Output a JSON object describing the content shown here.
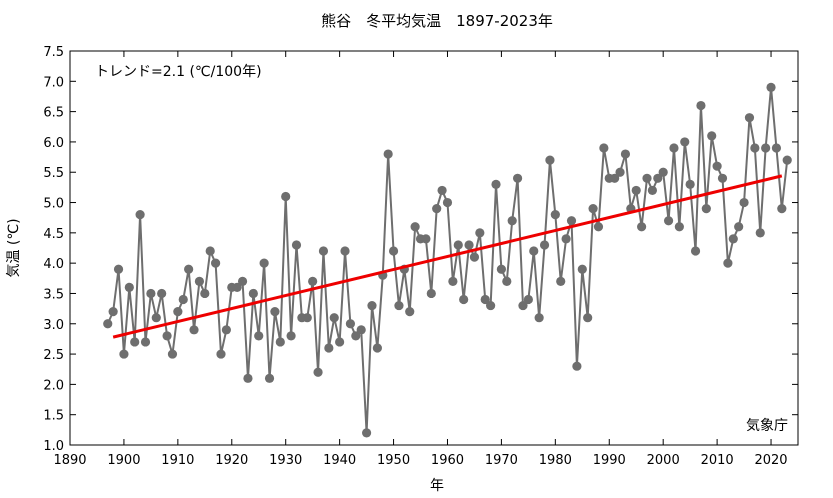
{
  "chart_data": {
    "type": "line",
    "title": "熊谷　冬平均気温　1897-2023年",
    "xlabel": "年",
    "ylabel": "気温 (℃)",
    "xlim": [
      1890,
      2025
    ],
    "ylim": [
      1.0,
      7.5
    ],
    "xticks": [
      1890,
      1900,
      1910,
      1920,
      1930,
      1940,
      1950,
      1960,
      1970,
      1980,
      1990,
      2000,
      2010,
      2020
    ],
    "yticks": [
      "1.0",
      "1.5",
      "2.0",
      "2.5",
      "3.0",
      "3.5",
      "4.0",
      "4.5",
      "5.0",
      "5.5",
      "6.0",
      "6.5",
      "7.0",
      "7.5"
    ],
    "grid": false,
    "series": [
      {
        "kind": "observed",
        "color": "#6e6e6e",
        "x": [
          1897,
          1898,
          1899,
          1900,
          1901,
          1902,
          1903,
          1904,
          1905,
          1906,
          1907,
          1908,
          1909,
          1910,
          1911,
          1912,
          1913,
          1914,
          1915,
          1916,
          1917,
          1918,
          1919,
          1920,
          1921,
          1922,
          1923,
          1924,
          1925,
          1926,
          1927,
          1928,
          1929,
          1930,
          1931,
          1932,
          1933,
          1934,
          1935,
          1936,
          1937,
          1938,
          1939,
          1940,
          1941,
          1942,
          1943,
          1944,
          1945,
          1946,
          1947,
          1948,
          1949,
          1950,
          1951,
          1952,
          1953,
          1954,
          1955,
          1956,
          1957,
          1958,
          1959,
          1960,
          1961,
          1962,
          1963,
          1964,
          1965,
          1966,
          1967,
          1968,
          1969,
          1970,
          1971,
          1972,
          1973,
          1974,
          1975,
          1976,
          1977,
          1978,
          1979,
          1980,
          1981,
          1982,
          1983,
          1984,
          1985,
          1986,
          1987,
          1988,
          1989,
          1990,
          1991,
          1992,
          1993,
          1994,
          1995,
          1996,
          1997,
          1998,
          1999,
          2000,
          2001,
          2002,
          2003,
          2004,
          2005,
          2006,
          2007,
          2008,
          2009,
          2010,
          2011,
          2012,
          2013,
          2014,
          2015,
          2016,
          2017,
          2018,
          2019,
          2020,
          2021,
          2022,
          2023
        ],
        "values": [
          3.0,
          3.2,
          3.9,
          2.5,
          3.6,
          2.7,
          4.8,
          2.7,
          3.5,
          3.1,
          3.5,
          2.8,
          2.5,
          3.2,
          3.4,
          3.9,
          2.9,
          3.7,
          3.5,
          4.2,
          4.0,
          2.5,
          2.9,
          3.6,
          3.6,
          3.7,
          2.1,
          3.5,
          2.8,
          4.0,
          2.1,
          3.2,
          2.7,
          5.1,
          2.8,
          4.3,
          3.1,
          3.1,
          3.7,
          2.2,
          4.2,
          2.6,
          3.1,
          2.7,
          4.2,
          3.0,
          2.8,
          2.9,
          1.2,
          3.3,
          2.6,
          3.8,
          5.8,
          4.2,
          3.3,
          3.9,
          3.2,
          4.6,
          4.4,
          4.4,
          3.5,
          4.9,
          5.2,
          5.0,
          3.7,
          4.3,
          3.4,
          4.3,
          4.1,
          4.5,
          3.4,
          3.3,
          5.3,
          3.9,
          3.7,
          4.7,
          5.4,
          3.3,
          3.4,
          4.2,
          3.1,
          4.3,
          5.7,
          4.8,
          3.7,
          4.4,
          4.7,
          2.3,
          3.9,
          3.1,
          4.9,
          4.6,
          5.9,
          5.4,
          5.4,
          5.5,
          5.8,
          4.9,
          5.2,
          4.6,
          5.4,
          5.2,
          5.4,
          5.5,
          4.7,
          5.9,
          4.6,
          6.0,
          5.3,
          4.2,
          6.6,
          4.9,
          6.1,
          5.6,
          5.4,
          4.0,
          4.4,
          4.6,
          5.0,
          6.4,
          5.9,
          4.5,
          5.9,
          6.9,
          5.9,
          4.9,
          5.7
        ]
      },
      {
        "kind": "trend",
        "color": "#ee0000",
        "x": [
          1898,
          2022
        ],
        "values": [
          2.78,
          5.44
        ]
      }
    ],
    "annotations": {
      "trend_label": "トレンド=2.1 (℃/100年)",
      "source": "気象庁"
    }
  }
}
